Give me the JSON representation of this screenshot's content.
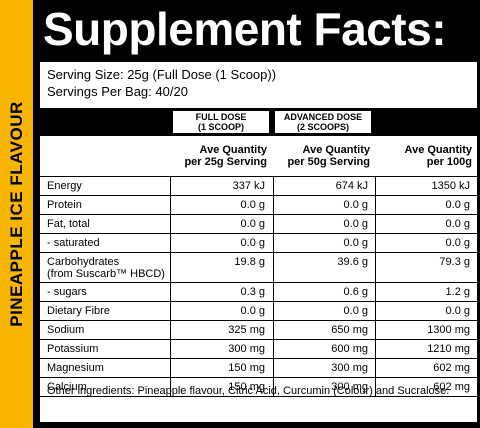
{
  "side_label": "PINEAPPLE ICE FLAVOUR",
  "header": {
    "title": "Supplement Facts:"
  },
  "serving": {
    "size": "Serving Size: 25g (Full Dose (1 Scoop))",
    "per_bag": "Servings Per Bag: 40/20"
  },
  "doses": [
    "FULL DOSE\n(1 SCOOP)",
    "ADVANCED DOSE\n(2 SCOOPS)"
  ],
  "columns": [
    "Ave Quantity\nper 25g Serving",
    "Ave Quantity\nper 50g Serving",
    "Ave Quantity\nper 100g"
  ],
  "rows": [
    {
      "label": "Energy",
      "values": [
        "337 kJ",
        "674 kJ",
        "1350 kJ"
      ]
    },
    {
      "label": "Protein",
      "values": [
        "0.0 g",
        "0.0 g",
        "0.0 g"
      ]
    },
    {
      "label": "Fat, total",
      "values": [
        "0.0 g",
        "0.0 g",
        "0.0 g"
      ]
    },
    {
      "label": "- saturated",
      "values": [
        "0.0 g",
        "0.0 g",
        "0.0 g"
      ]
    },
    {
      "label": "Carbohydrates",
      "note": "(from Suscarb™ HBCD)",
      "values": [
        "19.8 g",
        "39.6 g",
        "79.3 g"
      ]
    },
    {
      "label": "- sugars",
      "values": [
        "0.3 g",
        "0.6 g",
        "1.2 g"
      ]
    },
    {
      "label": "Dietary Fibre",
      "values": [
        "0.0 g",
        "0.0 g",
        "0.0 g"
      ]
    },
    {
      "label": "Sodium",
      "values": [
        "325 mg",
        "650 mg",
        "1300 mg"
      ]
    },
    {
      "label": "Potassium",
      "values": [
        "300 mg",
        "600 mg",
        "1210 mg"
      ]
    },
    {
      "label": "Magnesium",
      "values": [
        "150 mg",
        "300 mg",
        "602 mg"
      ]
    },
    {
      "label": "Calcium",
      "values": [
        "150 mg",
        "300 mg",
        "602 mg"
      ]
    }
  ],
  "footer": "Other ingredients: Pineapple flavour, Citric Acid, Curcumin (Colour) and Sucralose."
}
